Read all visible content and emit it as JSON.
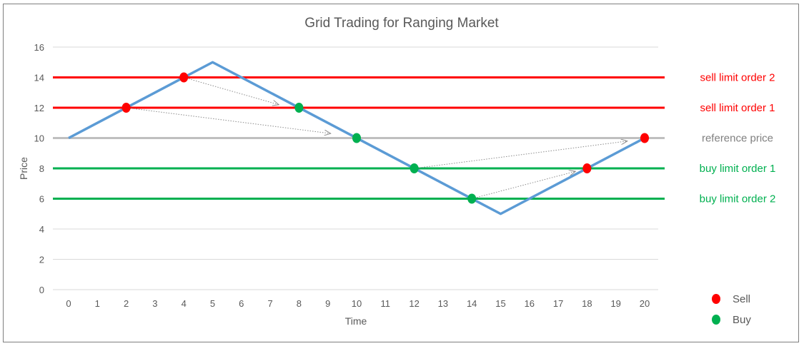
{
  "chart_data": {
    "type": "line",
    "title": "Grid Trading for Ranging Market",
    "xlabel": "Time",
    "ylabel": "Price",
    "xlim": [
      0,
      20
    ],
    "ylim": [
      0,
      16
    ],
    "x_ticks": [
      0,
      1,
      2,
      3,
      4,
      5,
      6,
      7,
      8,
      9,
      10,
      11,
      12,
      13,
      14,
      15,
      16,
      17,
      18,
      19,
      20
    ],
    "y_ticks": [
      0,
      2,
      4,
      6,
      8,
      10,
      12,
      14,
      16
    ],
    "grid": true,
    "series": [
      {
        "color": "#5b9bd5",
        "x": [
          0,
          5,
          15,
          20
        ],
        "y": [
          10,
          15,
          5,
          10
        ]
      }
    ],
    "levels": [
      {
        "label": "sell limit order 2",
        "y": 14,
        "color": "#ff0000"
      },
      {
        "label": "sell limit order 1",
        "y": 12,
        "color": "#ff0000"
      },
      {
        "label": "reference price",
        "y": 10,
        "color": "#bfbfbf",
        "label_color": "#808080"
      },
      {
        "label": "buy limit order 1",
        "y": 8,
        "color": "#00b050"
      },
      {
        "label": "buy limit order 2",
        "y": 6,
        "color": "#00b050"
      }
    ],
    "markers": [
      {
        "type": "Sell",
        "x": 2,
        "y": 12
      },
      {
        "type": "Sell",
        "x": 4,
        "y": 14
      },
      {
        "type": "Buy",
        "x": 8,
        "y": 12
      },
      {
        "type": "Buy",
        "x": 10,
        "y": 10
      },
      {
        "type": "Buy",
        "x": 12,
        "y": 8
      },
      {
        "type": "Buy",
        "x": 14,
        "y": 6
      },
      {
        "type": "Sell",
        "x": 18,
        "y": 8
      },
      {
        "type": "Sell",
        "x": 20,
        "y": 10
      }
    ],
    "arrows": [
      {
        "from": [
          4,
          14
        ],
        "to": [
          7.3,
          12.2
        ]
      },
      {
        "from": [
          2,
          12
        ],
        "to": [
          9.1,
          10.3
        ]
      },
      {
        "from": [
          12,
          8
        ],
        "to": [
          19.4,
          9.8
        ]
      },
      {
        "from": [
          14,
          6
        ],
        "to": [
          17.6,
          7.8
        ]
      }
    ],
    "legend": {
      "position": "bottom-right",
      "items": [
        {
          "label": "Sell",
          "color": "#ff0000"
        },
        {
          "label": "Buy",
          "color": "#00b050"
        }
      ]
    }
  }
}
